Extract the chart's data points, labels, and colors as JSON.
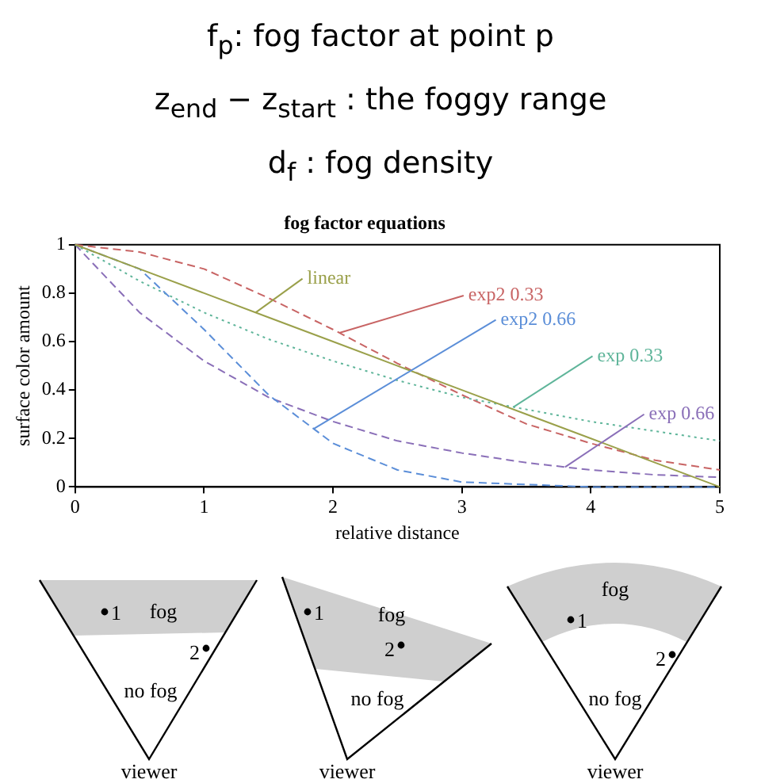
{
  "chart_data": {
    "type": "line",
    "title": "fog factor equations",
    "xlabel": "relative distance",
    "ylabel": "surface color amount",
    "x": [
      0,
      0.5,
      1,
      1.5,
      2,
      2.5,
      3,
      3.5,
      4,
      4.5,
      5
    ],
    "series": [
      {
        "name": "linear",
        "color": "#9aa04a",
        "line_style": "solid",
        "values": [
          1,
          0.9,
          0.8,
          0.7,
          0.6,
          0.5,
          0.4,
          0.3,
          0.2,
          0.1,
          0
        ]
      },
      {
        "name": "exp2 0.33",
        "color": "#c86464",
        "line_style": "dashed",
        "values": [
          1,
          0.97,
          0.9,
          0.78,
          0.65,
          0.51,
          0.38,
          0.26,
          0.18,
          0.11,
          0.07
        ]
      },
      {
        "name": "exp2 0.66",
        "color": "#5b8ed8",
        "line_style": "dashed",
        "values": [
          1,
          0.9,
          0.65,
          0.38,
          0.18,
          0.07,
          0.02,
          0.01,
          0,
          0,
          0
        ]
      },
      {
        "name": "exp 0.33",
        "color": "#5fb59a",
        "line_style": "dotted",
        "values": [
          1,
          0.85,
          0.72,
          0.61,
          0.52,
          0.44,
          0.37,
          0.32,
          0.27,
          0.23,
          0.19
        ]
      },
      {
        "name": "exp 0.66",
        "color": "#8a6fb8",
        "line_style": "dashed",
        "values": [
          1,
          0.72,
          0.52,
          0.37,
          0.27,
          0.19,
          0.14,
          0.1,
          0.07,
          0.05,
          0.04
        ]
      }
    ],
    "xlim": [
      0,
      5
    ],
    "xticks": [
      0,
      1,
      2,
      3,
      4,
      5
    ],
    "ylim": [
      0,
      1
    ],
    "yticks": [
      0,
      0.2,
      0.4,
      0.6,
      0.8,
      1
    ],
    "grid": false,
    "legend": false,
    "marker": "none",
    "annotations": [
      "f$_{p}$: fog factor at point p",
      "z$_{end}$ − z$_{start}$ : the foggy range",
      "d$_{f}$ : fog density",
      "fog",
      "no fog",
      "viewer",
      "1",
      "2",
      "fog",
      "no fog",
      "viewer",
      "1",
      "2",
      "fog",
      "no fog",
      "viewer",
      "1",
      "2"
    ]
  }
}
